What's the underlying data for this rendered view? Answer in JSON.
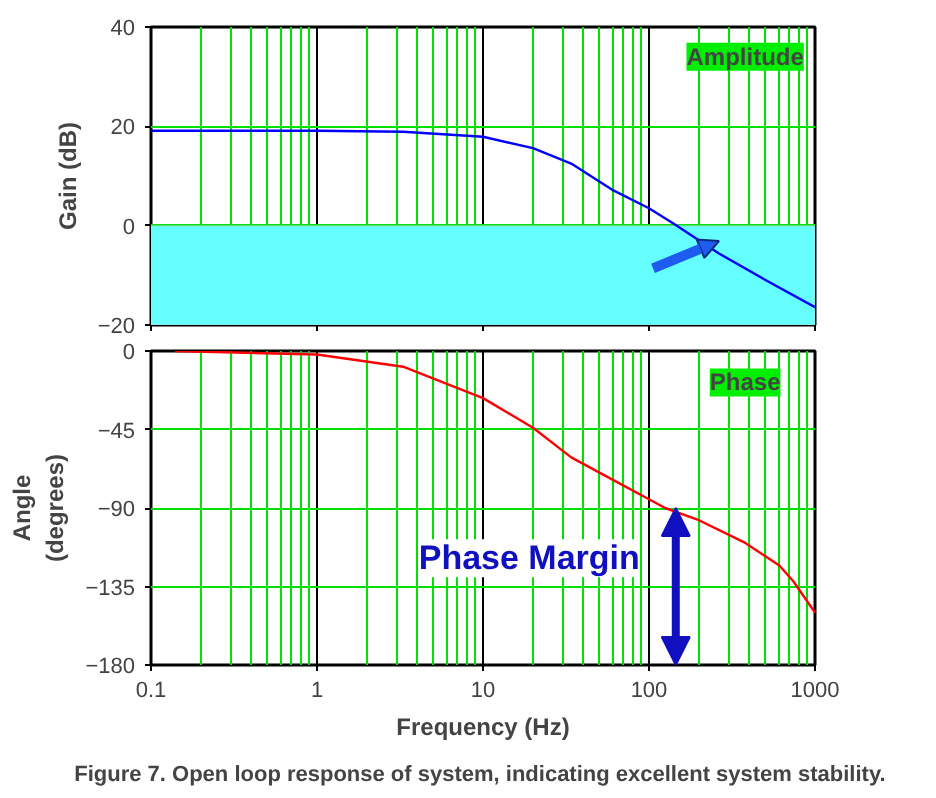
{
  "chart_data": [
    {
      "type": "line",
      "ylabel": "Gain (dB)",
      "log": "x",
      "grid": true,
      "tick_labels": "y",
      "xlim": [
        0.1,
        1000
      ],
      "xticks": [
        0.1,
        1,
        10,
        100,
        1000
      ],
      "ylim": [
        -20,
        40
      ],
      "yticks": [
        -20,
        0,
        20,
        40
      ],
      "bands": [
        {
          "axis": "y",
          "from": -20,
          "to": 0,
          "color": "#66ffff"
        }
      ],
      "annotations": [
        "Amplitude"
      ],
      "series": [
        {
          "color": "#0000ff",
          "x": [
            0.1,
            1,
            3.3,
            10,
            20,
            34,
            61,
            100,
            141,
            264,
            506,
            1000
          ],
          "values": [
            19.1,
            19.1,
            18.9,
            17.9,
            15.6,
            12.5,
            7.1,
            3.5,
            0.4,
            -5.6,
            -11,
            -16.4
          ]
        }
      ]
    },
    {
      "type": "line",
      "ylabel": "Angle\n(degrees)",
      "xlabel": "Frequency (Hz)",
      "log": "x",
      "grid": true,
      "xlim": [
        0.1,
        1000
      ],
      "xticks": [
        0.1,
        1,
        10,
        100,
        1000
      ],
      "ylim": [
        -180,
        0
      ],
      "yticks": [
        -180,
        -135,
        -90,
        -45,
        0
      ],
      "annotations": [
        "Phase",
        {
          "text": "Phase Margin",
          "x": 145,
          "y": -90
        },
        "Figure 7.  Open loop response of system, indicating excellent system stability."
      ],
      "series": [
        {
          "color": "#ff0000",
          "x": [
            0.14,
            1,
            3.3,
            10,
            20,
            34,
            61,
            100,
            125,
            200,
            380,
            610,
            740,
            1000
          ],
          "values": [
            0,
            -2,
            -9,
            -27,
            -44,
            -61,
            -74,
            -85,
            -90,
            -97,
            -110,
            -123,
            -132,
            -150
          ]
        }
      ]
    }
  ]
}
